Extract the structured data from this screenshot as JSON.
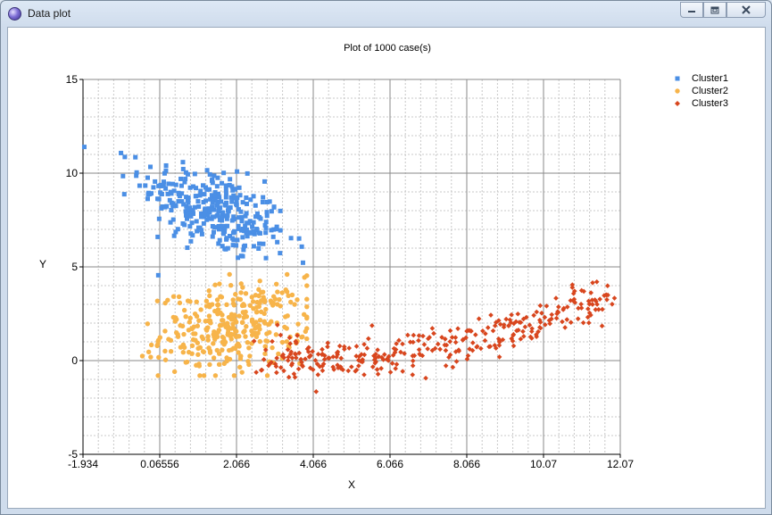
{
  "window": {
    "title": "Data plot",
    "controls": [
      "minimize-icon",
      "restore-icon",
      "close-icon"
    ]
  },
  "chart_data": {
    "type": "scatter",
    "title": "Plot of 1000 case(s)",
    "xlabel": "X",
    "ylabel": "Y",
    "xlim": [
      -1.934,
      12.07
    ],
    "ylim": [
      -5,
      15
    ],
    "x_ticks": [
      "-1.934",
      "0.06556",
      "2.066",
      "4.066",
      "6.066",
      "8.066",
      "10.07",
      "12.07"
    ],
    "y_ticks": [
      "-5",
      "0",
      "5",
      "10",
      "15"
    ],
    "grid": true,
    "legend_position": "top-right",
    "series": [
      {
        "name": "Cluster1",
        "color": "#4b8fe5",
        "marker": "square",
        "count": 333,
        "center": [
          1.5,
          8.0
        ],
        "spread": [
          0.95,
          1.3
        ],
        "correlation": -0.55,
        "x_range": [
          -1.9,
          3.8
        ],
        "y_range": [
          3.5,
          13.0
        ]
      },
      {
        "name": "Cluster2",
        "color": "#f7b44a",
        "marker": "circle",
        "count": 333,
        "center": [
          2.0,
          1.8
        ],
        "spread": [
          0.95,
          1.15
        ],
        "correlation": 0.2,
        "x_range": [
          -0.9,
          3.9
        ],
        "y_range": [
          -0.8,
          4.6
        ]
      },
      {
        "name": "Cluster3",
        "color": "#d8461e",
        "marker": "diamond",
        "count": 334,
        "shape": "parabolic",
        "x_range": [
          2.5,
          12.07
        ],
        "y_range": [
          -2.0,
          6.8
        ]
      }
    ]
  }
}
